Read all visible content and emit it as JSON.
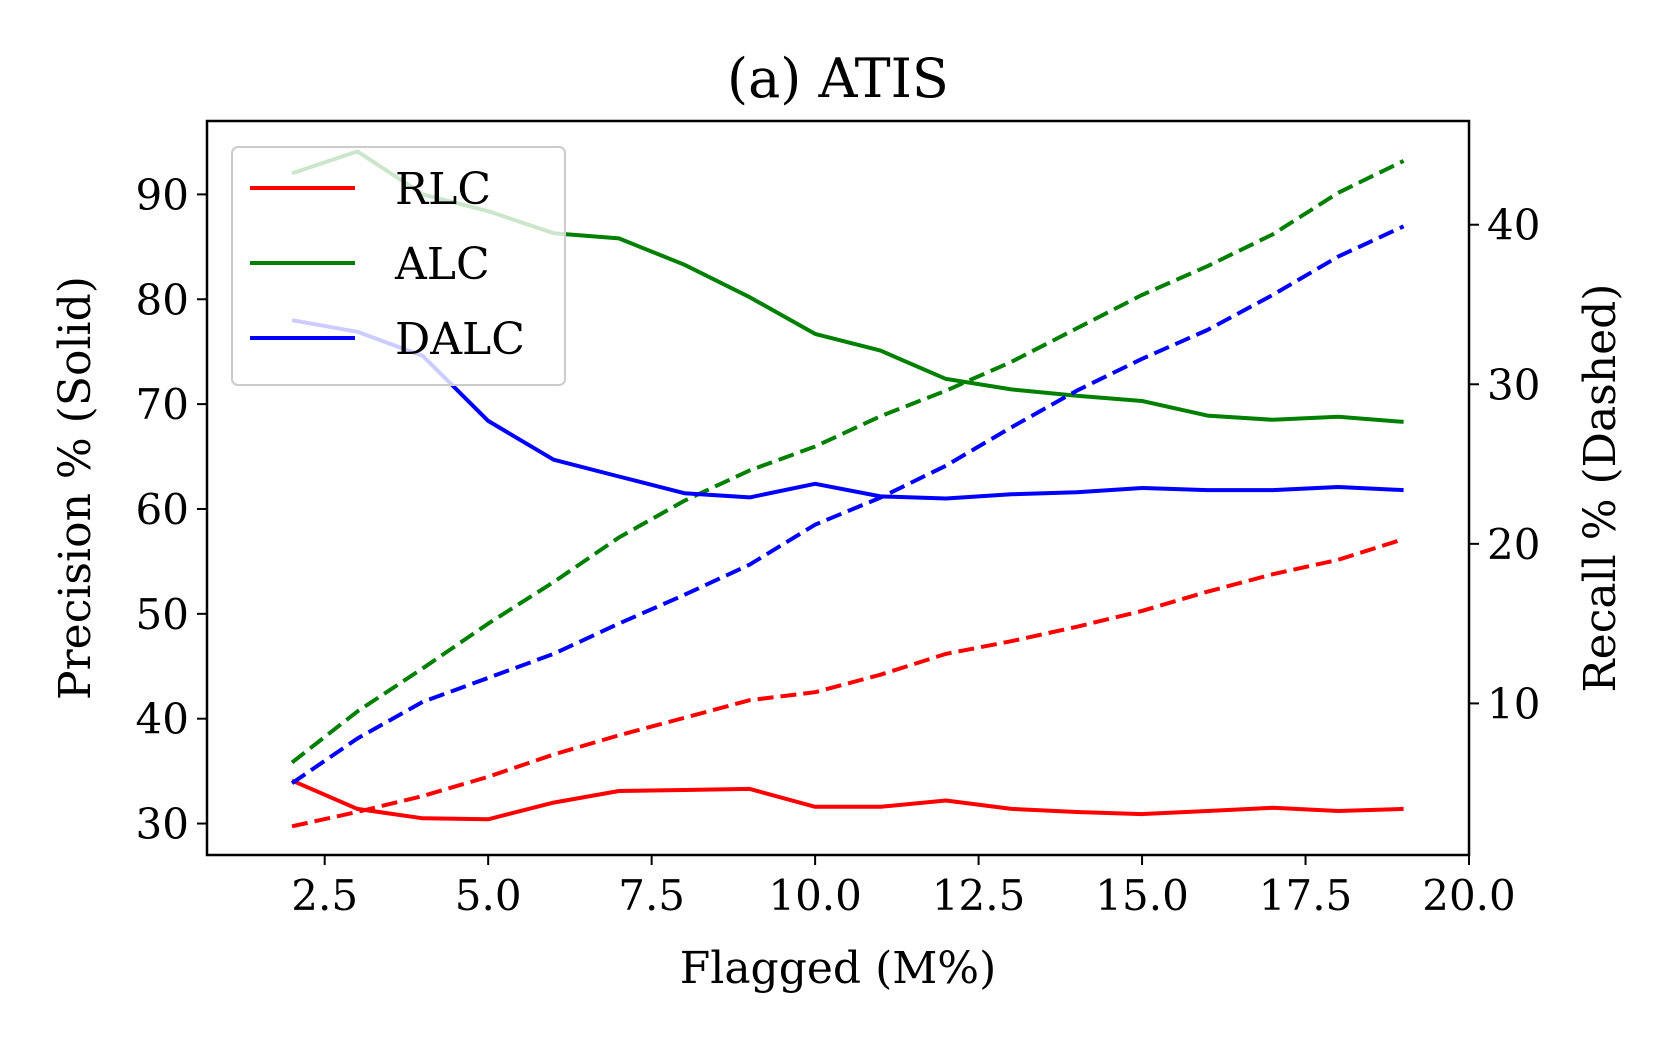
{
  "chart_data": {
    "type": "line",
    "title": "(a) ATIS",
    "xlabel": "Flagged (M%)",
    "ylabel_left": "Precision % (Solid)",
    "ylabel_right": "Recall % (Dashed)",
    "xlim": [
      0.7,
      20.0
    ],
    "ylim_left": [
      27,
      97
    ],
    "ylim_right": [
      0.5,
      46.5
    ],
    "xticks": [
      2.5,
      5.0,
      7.5,
      10.0,
      12.5,
      15.0,
      17.5,
      20.0
    ],
    "xtick_labels": [
      "2.5",
      "5.0",
      "7.5",
      "10.0",
      "12.5",
      "15.0",
      "17.5",
      "20.0"
    ],
    "yticks_left": [
      30,
      40,
      50,
      60,
      70,
      80,
      90
    ],
    "yticks_right": [
      10,
      20,
      30,
      40
    ],
    "legend_position": "upper-left",
    "x": [
      2.0,
      3.0,
      4.0,
      5.0,
      6.0,
      7.0,
      8.0,
      9.0,
      10.0,
      11.0,
      12.0,
      13.0,
      14.0,
      15.0,
      16.0,
      17.0,
      18.0,
      19.0
    ],
    "series": [
      {
        "name": "RLC",
        "color": "#ff0000",
        "precision": [
          34.1,
          31.4,
          30.5,
          30.4,
          32.0,
          33.1,
          33.2,
          33.3,
          31.6,
          31.6,
          32.2,
          31.4,
          31.1,
          30.9,
          31.2,
          31.5,
          31.2,
          31.4
        ],
        "recall": [
          2.3,
          3.2,
          4.2,
          5.4,
          6.8,
          8.0,
          9.1,
          10.2,
          10.7,
          11.8,
          13.1,
          13.9,
          14.8,
          15.8,
          17.0,
          18.1,
          19.0,
          20.3
        ]
      },
      {
        "name": "ALC",
        "color": "#008000",
        "precision": [
          92.0,
          94.1,
          90.0,
          88.4,
          86.3,
          85.8,
          83.3,
          80.2,
          76.7,
          75.1,
          72.4,
          71.4,
          70.8,
          70.3,
          68.9,
          68.5,
          68.8,
          68.3
        ],
        "recall": [
          6.3,
          9.5,
          12.2,
          15.0,
          17.6,
          20.4,
          22.7,
          24.6,
          26.1,
          28.0,
          29.6,
          31.4,
          33.5,
          35.6,
          37.4,
          39.4,
          42.0,
          44.0
        ]
      },
      {
        "name": "DALC",
        "color": "#0000ff",
        "precision": [
          78.0,
          76.9,
          74.6,
          68.4,
          64.7,
          63.1,
          61.5,
          61.1,
          62.4,
          61.2,
          61.0,
          61.4,
          61.6,
          62.0,
          61.8,
          61.8,
          62.1,
          61.8
        ],
        "recall": [
          5.0,
          7.8,
          10.1,
          11.6,
          13.1,
          15.0,
          16.8,
          18.7,
          21.2,
          22.9,
          24.9,
          27.3,
          29.6,
          31.6,
          33.4,
          35.6,
          38.0,
          39.9
        ]
      }
    ]
  }
}
